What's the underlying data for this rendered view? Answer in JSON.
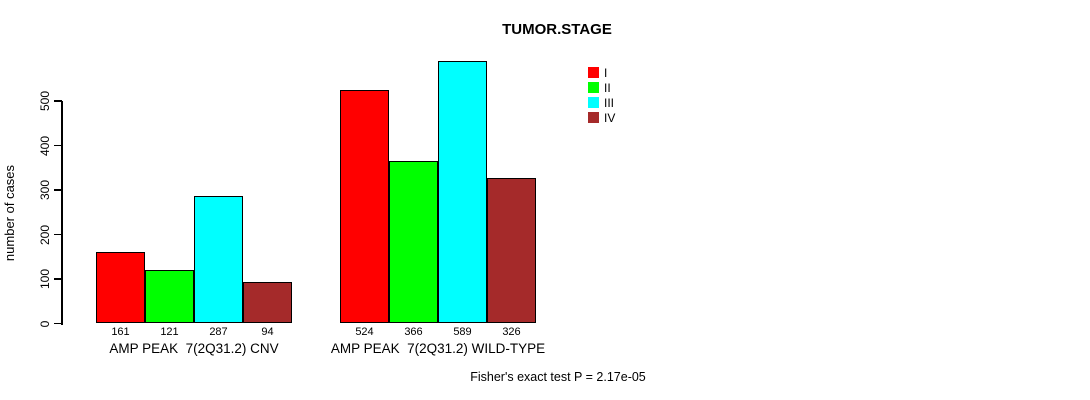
{
  "chart_data": {
    "type": "bar",
    "title": "TUMOR.STAGE",
    "xlabel": "",
    "ylabel": "number of cases",
    "ylim": [
      0,
      500
    ],
    "yticks": [
      0,
      100,
      200,
      300,
      400,
      500
    ],
    "grid": false,
    "bar_value_labels_shown": true,
    "legend": {
      "position": "top-right",
      "entries": [
        {
          "label": "I",
          "color": "#ff0000"
        },
        {
          "label": "II",
          "color": "#00ff00"
        },
        {
          "label": "III",
          "color": "#00ffff"
        },
        {
          "label": "IV",
          "color": "#a52a2a"
        }
      ]
    },
    "series_labels": [
      "I",
      "II",
      "III",
      "IV"
    ],
    "groups": [
      {
        "label": "AMP PEAK  7(2Q31.2) CNV",
        "values": [
          161,
          121,
          287,
          94
        ]
      },
      {
        "label": "AMP PEAK  7(2Q31.2) WILD-TYPE",
        "values": [
          524,
          366,
          589,
          326
        ]
      }
    ],
    "footer": "Fisher's exact test P = 2.17e-05"
  }
}
